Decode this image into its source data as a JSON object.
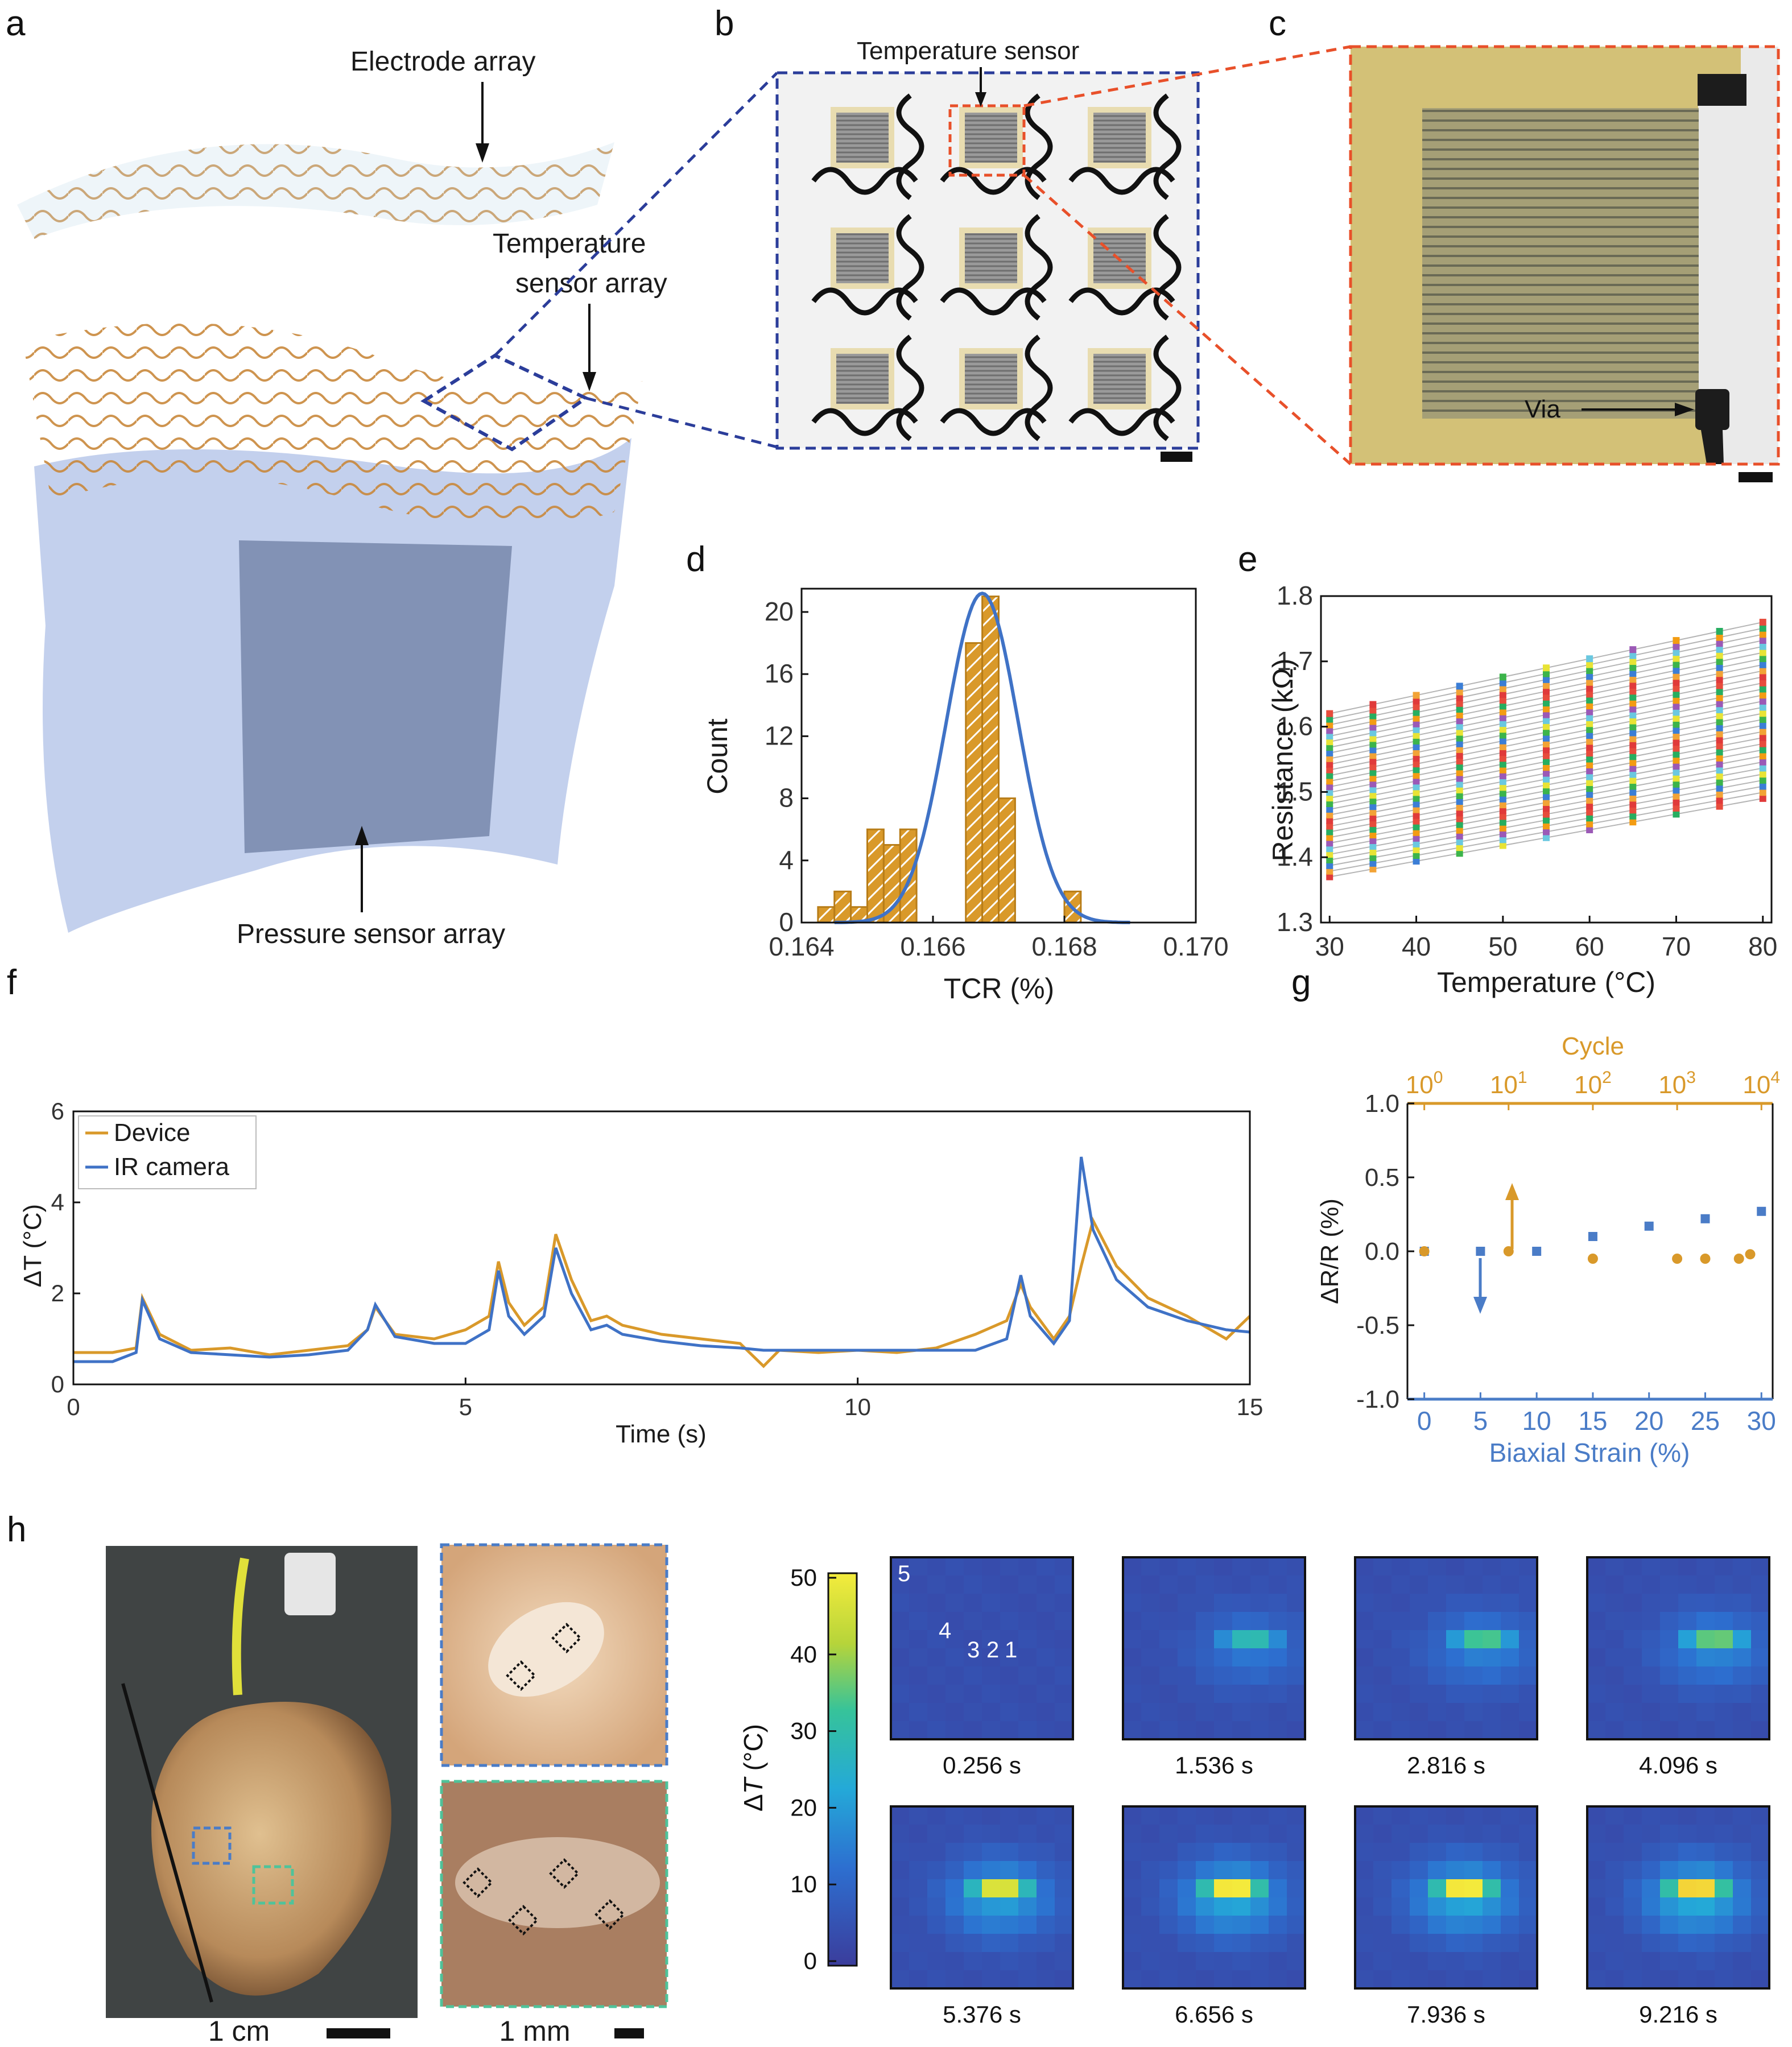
{
  "panel_letters": [
    "a",
    "b",
    "c",
    "d",
    "e",
    "f",
    "g",
    "h"
  ],
  "panel_a": {
    "labels": {
      "electrode": "Electrode array",
      "temperature_line1": "Temperature",
      "temperature_line2": "sensor array",
      "pressure": "Pressure sensor array"
    }
  },
  "panel_b": {
    "callout": "Temperature sensor"
  },
  "panel_c": {
    "callout": "Via"
  },
  "colors": {
    "gold": "#d9992a",
    "blue": "#4a7cc7",
    "navy": "#2b3d9a",
    "orange_dash": "#e8502a",
    "teal_dash": "#4fc39a",
    "kapton": "#d3c177"
  },
  "chart_data": [
    {
      "id": "d",
      "type": "bar",
      "title": "",
      "xlabel": "TCR (%)",
      "ylabel": "Count",
      "xlim": [
        0.164,
        0.17
      ],
      "ylim": [
        0,
        21.5
      ],
      "xticks": [
        "0.164",
        "0.166",
        "0.168",
        "0.170"
      ],
      "yticks": [
        "0",
        "4",
        "8",
        "12",
        "16",
        "20"
      ],
      "bin_width": 0.00025,
      "bin_starts": [
        0.16425,
        0.1645,
        0.16475,
        0.165,
        0.16525,
        0.1655,
        0.16575,
        0.166,
        0.16625,
        0.1665,
        0.16675,
        0.167,
        0.16725,
        0.1675,
        0.16775,
        0.168,
        0.16825
      ],
      "counts": [
        1,
        2,
        1,
        6,
        5,
        6,
        0,
        0,
        0,
        18,
        21,
        8,
        0,
        0,
        0,
        2,
        0
      ],
      "gaussian_fit": {
        "mean": 0.16675,
        "sigma": 0.00055,
        "peak": 21.2
      }
    },
    {
      "id": "e",
      "type": "scatter",
      "xlabel": "Temperature (°C)",
      "ylabel": "Resistance (kΩ)",
      "xlim": [
        29,
        81
      ],
      "ylim": [
        1.3,
        1.8
      ],
      "xticks": [
        "30",
        "40",
        "50",
        "60",
        "70",
        "80"
      ],
      "yticks": [
        "1.3",
        "1.4",
        "1.5",
        "1.6",
        "1.7",
        "1.8"
      ],
      "x": [
        30,
        35,
        40,
        45,
        50,
        55,
        60,
        65,
        70,
        75,
        80
      ],
      "sensor_count": 30,
      "r_at_30_range": [
        1.37,
        1.62
      ],
      "r_at_80_range": [
        1.49,
        1.76
      ],
      "marker_colors": [
        "#e03a3a",
        "#f2a336",
        "#3b7ed6",
        "#3cb44b",
        "#e8e335",
        "#6ac8e0",
        "#9b59b6",
        "#f39c12",
        "#27ae60",
        "#e74c3c"
      ]
    },
    {
      "id": "f",
      "type": "line",
      "xlabel": "Time (s)",
      "ylabel": "ΔT (°C)",
      "xlim": [
        0,
        15
      ],
      "ylim": [
        0,
        6
      ],
      "xticks": [
        "0",
        "5",
        "10",
        "15"
      ],
      "yticks": [
        "0",
        "2",
        "4",
        "6"
      ],
      "series": [
        {
          "name": "Device",
          "color": "#d9992a",
          "x": [
            0,
            0.5,
            0.8,
            0.88,
            1.1,
            1.5,
            2,
            2.5,
            3,
            3.5,
            3.75,
            3.85,
            4.1,
            4.6,
            5,
            5.3,
            5.42,
            5.55,
            5.75,
            6.0,
            6.15,
            6.35,
            6.6,
            6.8,
            7,
            7.5,
            8,
            8.5,
            8.8,
            9,
            9.5,
            10,
            10.5,
            11,
            11.5,
            11.9,
            12.08,
            12.2,
            12.5,
            12.7,
            12.85,
            13.0,
            13.3,
            13.7,
            14.2,
            14.7,
            15
          ],
          "y": [
            0.7,
            0.7,
            0.8,
            1.9,
            1.1,
            0.75,
            0.8,
            0.65,
            0.75,
            0.85,
            1.2,
            1.7,
            1.1,
            1.0,
            1.2,
            1.5,
            2.7,
            1.8,
            1.3,
            1.7,
            3.3,
            2.3,
            1.4,
            1.5,
            1.3,
            1.1,
            1.0,
            0.9,
            0.4,
            0.75,
            0.7,
            0.75,
            0.7,
            0.8,
            1.1,
            1.4,
            2.2,
            1.7,
            1.0,
            1.5,
            2.6,
            3.6,
            2.6,
            1.9,
            1.5,
            1.0,
            1.5
          ]
        },
        {
          "name": "IR camera",
          "color": "#3f72c6",
          "x": [
            0,
            0.5,
            0.8,
            0.88,
            1.1,
            1.5,
            2,
            2.5,
            3,
            3.5,
            3.75,
            3.85,
            4.1,
            4.6,
            5,
            5.3,
            5.42,
            5.55,
            5.75,
            6.0,
            6.15,
            6.35,
            6.6,
            6.8,
            7,
            7.5,
            8,
            8.5,
            8.8,
            9,
            9.5,
            10,
            10.5,
            11,
            11.5,
            11.9,
            12.08,
            12.2,
            12.5,
            12.7,
            12.85,
            13.0,
            13.3,
            13.7,
            14.2,
            14.7,
            15
          ],
          "y": [
            0.5,
            0.5,
            0.7,
            1.85,
            1.0,
            0.7,
            0.65,
            0.6,
            0.65,
            0.75,
            1.2,
            1.75,
            1.05,
            0.9,
            0.9,
            1.2,
            2.5,
            1.5,
            1.1,
            1.5,
            3.0,
            2.0,
            1.2,
            1.3,
            1.1,
            0.95,
            0.85,
            0.8,
            0.75,
            0.75,
            0.75,
            0.75,
            0.75,
            0.75,
            0.75,
            1.0,
            2.4,
            1.5,
            0.9,
            1.4,
            5.0,
            3.4,
            2.3,
            1.7,
            1.4,
            1.2,
            1.15
          ]
        }
      ],
      "legend": "top-left"
    },
    {
      "id": "g",
      "type": "scatter",
      "xlabel": "Biaxial Strain (%)",
      "ylabel": "ΔR/R (%)",
      "top_xlabel": "Cycle",
      "xlim": [
        -1.5,
        31
      ],
      "ylim": [
        -1.0,
        1.0
      ],
      "xticks": [
        "0",
        "5",
        "10",
        "15",
        "20",
        "25",
        "30"
      ],
      "yticks": [
        "-1.0",
        "-0.5",
        "0.0",
        "0.5",
        "1.0"
      ],
      "top_ticks": [
        {
          "base": "10",
          "exp": "0"
        },
        {
          "base": "10",
          "exp": "1"
        },
        {
          "base": "10",
          "exp": "2"
        },
        {
          "base": "10",
          "exp": "3"
        },
        {
          "base": "10",
          "exp": "4"
        }
      ],
      "series": [
        {
          "name": "strain",
          "color": "#4a7cc7",
          "marker": "square",
          "x": [
            0,
            5,
            10,
            15,
            20,
            25,
            30
          ],
          "y": [
            0.0,
            0.0,
            0.0,
            0.1,
            0.17,
            0.22,
            0.27
          ]
        },
        {
          "name": "cycle",
          "color": "#d9992a",
          "marker": "circle",
          "x": [
            0,
            7.5,
            15,
            22.5,
            25,
            28,
            29
          ],
          "y": [
            0.0,
            0.0,
            -0.05,
            -0.05,
            -0.05,
            -0.05,
            -0.02
          ]
        }
      ]
    }
  ],
  "panel_h": {
    "scalebars": {
      "left": "1 cm",
      "right": "1 mm"
    },
    "colorbar": {
      "label_prefix": "Δ",
      "label_var": "T",
      "label_unit": " (°C)",
      "ticks": [
        "0",
        "10",
        "20",
        "30",
        "40",
        "50"
      ]
    },
    "point_labels": [
      "5",
      "4",
      "3",
      "2",
      "1"
    ],
    "frames": [
      {
        "time": "0.256 s",
        "intensity": 0.0
      },
      {
        "time": "1.536 s",
        "intensity": 0.45
      },
      {
        "time": "2.816 s",
        "intensity": 0.55
      },
      {
        "time": "4.096 s",
        "intensity": 0.6
      },
      {
        "time": "5.376 s",
        "intensity": 0.85
      },
      {
        "time": "6.656 s",
        "intensity": 0.95
      },
      {
        "time": "7.936 s",
        "intensity": 0.95
      },
      {
        "time": "9.216 s",
        "intensity": 1.0
      }
    ]
  }
}
